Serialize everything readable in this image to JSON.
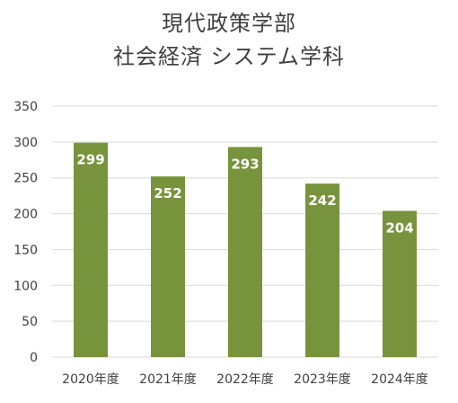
{
  "chart_data": {
    "type": "bar",
    "title": [
      "現代政策学部",
      "社会経済 システム学科"
    ],
    "categories": [
      "2020年度",
      "2021年度",
      "2022年度",
      "2023年度",
      "2024年度"
    ],
    "values": [
      299,
      252,
      293,
      242,
      204
    ],
    "ylim": [
      0,
      350
    ],
    "yticks": [
      0,
      50,
      100,
      150,
      200,
      250,
      300,
      350
    ],
    "grid": true,
    "legend": "none",
    "data_labels": true,
    "bar_color": "#77933C",
    "grid_color": "#D9D9D9",
    "text_color": "#404040"
  }
}
